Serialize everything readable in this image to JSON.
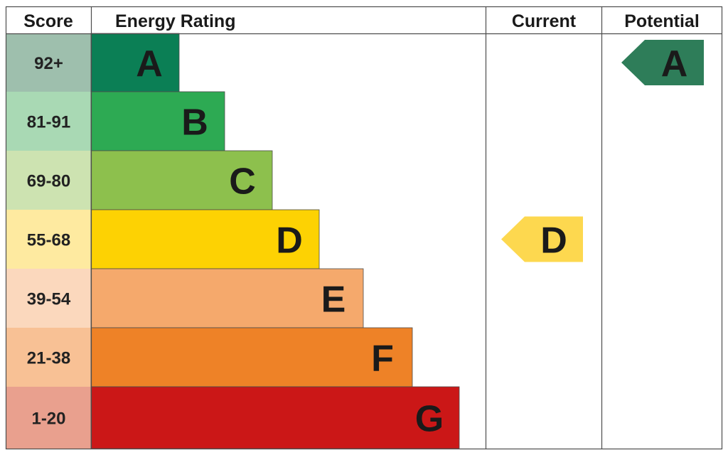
{
  "chart_data": {
    "type": "table",
    "headers": {
      "score": "Score",
      "rating": "Energy Rating",
      "current": "Current",
      "potential": "Potential"
    },
    "bands": [
      {
        "letter": "A",
        "range": "92+",
        "bar_color": "#0b7f55",
        "score_bg": "#9ebfad"
      },
      {
        "letter": "B",
        "range": "81-91",
        "bar_color": "#2daa53",
        "score_bg": "#a9d9b4"
      },
      {
        "letter": "C",
        "range": "69-80",
        "bar_color": "#8dc04d",
        "score_bg": "#cde3b1"
      },
      {
        "letter": "D",
        "range": "55-68",
        "bar_color": "#fdd203",
        "score_bg": "#feeaa0"
      },
      {
        "letter": "E",
        "range": "39-54",
        "bar_color": "#f5a96c",
        "score_bg": "#fbd8bd"
      },
      {
        "letter": "F",
        "range": "21-38",
        "bar_color": "#ee8227",
        "score_bg": "#f8c195"
      },
      {
        "letter": "G",
        "range": "1-20",
        "bar_color": "#cb1717",
        "score_bg": "#e9a08e"
      }
    ],
    "current": {
      "letter": "D",
      "color": "#fdd84f"
    },
    "potential": {
      "letter": "A",
      "color": "#2e7d59"
    }
  }
}
